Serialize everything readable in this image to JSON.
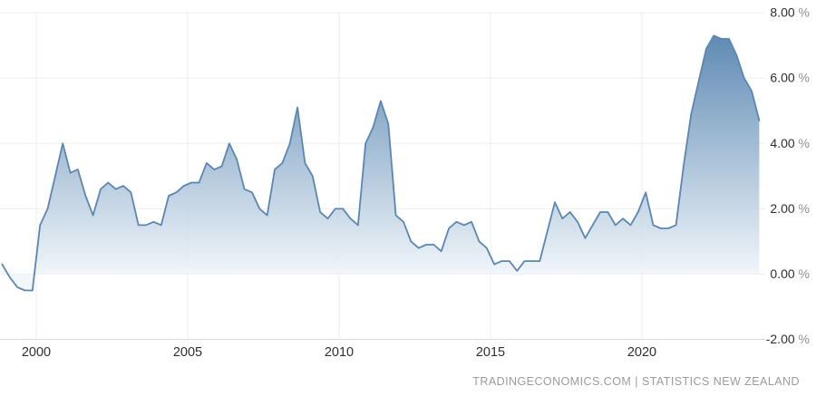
{
  "chart_data": {
    "type": "area",
    "title": "",
    "xlabel": "",
    "ylabel": "",
    "unit": "%",
    "ylim": [
      -2,
      8
    ],
    "grid": true,
    "legend": "none",
    "x_axis_years_per_tick": 5,
    "categories": [
      "1998 Q4",
      "1999 Q1",
      "1999 Q2",
      "1999 Q3",
      "1999 Q4",
      "2000 Q1",
      "2000 Q2",
      "2000 Q3",
      "2000 Q4",
      "2001 Q1",
      "2001 Q2",
      "2001 Q3",
      "2001 Q4",
      "2002 Q1",
      "2002 Q2",
      "2002 Q3",
      "2002 Q4",
      "2003 Q1",
      "2003 Q2",
      "2003 Q3",
      "2003 Q4",
      "2004 Q1",
      "2004 Q2",
      "2004 Q3",
      "2004 Q4",
      "2005 Q1",
      "2005 Q2",
      "2005 Q3",
      "2005 Q4",
      "2006 Q1",
      "2006 Q2",
      "2006 Q3",
      "2006 Q4",
      "2007 Q1",
      "2007 Q2",
      "2007 Q3",
      "2007 Q4",
      "2008 Q1",
      "2008 Q2",
      "2008 Q3",
      "2008 Q4",
      "2009 Q1",
      "2009 Q2",
      "2009 Q3",
      "2009 Q4",
      "2010 Q1",
      "2010 Q2",
      "2010 Q3",
      "2010 Q4",
      "2011 Q1",
      "2011 Q2",
      "2011 Q3",
      "2011 Q4",
      "2012 Q1",
      "2012 Q2",
      "2012 Q3",
      "2012 Q4",
      "2013 Q1",
      "2013 Q2",
      "2013 Q3",
      "2013 Q4",
      "2014 Q1",
      "2014 Q2",
      "2014 Q3",
      "2014 Q4",
      "2015 Q1",
      "2015 Q2",
      "2015 Q3",
      "2015 Q4",
      "2016 Q1",
      "2016 Q2",
      "2016 Q3",
      "2016 Q4",
      "2017 Q1",
      "2017 Q2",
      "2017 Q3",
      "2017 Q4",
      "2018 Q1",
      "2018 Q2",
      "2018 Q3",
      "2018 Q4",
      "2019 Q1",
      "2019 Q2",
      "2019 Q3",
      "2019 Q4",
      "2020 Q1",
      "2020 Q2",
      "2020 Q3",
      "2020 Q4",
      "2021 Q1",
      "2021 Q2",
      "2021 Q3",
      "2021 Q4",
      "2022 Q1",
      "2022 Q2",
      "2022 Q3",
      "2022 Q4",
      "2023 Q1",
      "2023 Q2",
      "2023 Q3",
      "2023 Q4"
    ],
    "values": [
      0.3,
      -0.1,
      -0.4,
      -0.5,
      -0.5,
      1.5,
      2.0,
      3.0,
      4.0,
      3.1,
      3.2,
      2.4,
      1.8,
      2.6,
      2.8,
      2.6,
      2.7,
      2.5,
      1.5,
      1.5,
      1.6,
      1.5,
      2.4,
      2.5,
      2.7,
      2.8,
      2.8,
      3.4,
      3.2,
      3.3,
      4.0,
      3.5,
      2.6,
      2.5,
      2.0,
      1.8,
      3.2,
      3.4,
      4.0,
      5.1,
      3.4,
      3.0,
      1.9,
      1.7,
      2.0,
      2.0,
      1.7,
      1.5,
      4.0,
      4.5,
      5.3,
      4.6,
      1.8,
      1.6,
      1.0,
      0.8,
      0.9,
      0.9,
      0.7,
      1.4,
      1.6,
      1.5,
      1.6,
      1.0,
      0.8,
      0.3,
      0.4,
      0.4,
      0.1,
      0.4,
      0.4,
      0.4,
      1.3,
      2.2,
      1.7,
      1.9,
      1.6,
      1.1,
      1.5,
      1.9,
      1.9,
      1.5,
      1.7,
      1.5,
      1.9,
      2.5,
      1.5,
      1.4,
      1.4,
      1.5,
      3.3,
      4.9,
      5.9,
      6.9,
      7.3,
      7.2,
      7.2,
      6.7,
      6.0,
      5.6,
      4.7
    ],
    "yticks": [
      {
        "value": 8,
        "num": "8.00",
        "unit": "%"
      },
      {
        "value": 6,
        "num": "6.00",
        "unit": "%"
      },
      {
        "value": 4,
        "num": "4.00",
        "unit": "%"
      },
      {
        "value": 2,
        "num": "2.00",
        "unit": "%"
      },
      {
        "value": 0,
        "num": "0.00",
        "unit": "%"
      },
      {
        "value": -2,
        "num": "-2.00",
        "unit": "%"
      }
    ],
    "xticks": [
      {
        "year": 2000,
        "label": "2000"
      },
      {
        "year": 2005,
        "label": "2005"
      },
      {
        "year": 2010,
        "label": "2010"
      },
      {
        "year": 2015,
        "label": "2015"
      },
      {
        "year": 2020,
        "label": "2020"
      }
    ]
  },
  "colors": {
    "line": "#5b86b2",
    "fill_top": "#3a6fa2",
    "fill_bottom": "#eff5fa",
    "grid": "#ededed",
    "axis": "#d8d8d8",
    "tick_text": "#2f2f2f",
    "unit_text": "#8f8f8f",
    "footer_text": "#9b9b9b"
  },
  "attribution": {
    "source": "TRADINGECONOMICS.COM",
    "separator": "|",
    "provider": "STATISTICS NEW ZEALAND"
  }
}
